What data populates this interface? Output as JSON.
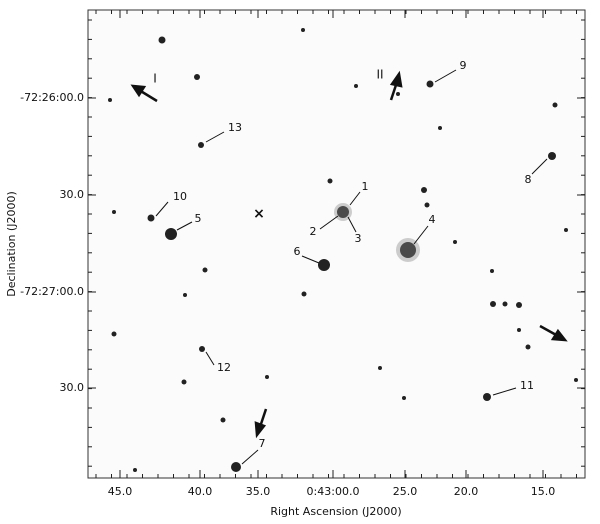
{
  "axes": {
    "x_title": "Right Ascension (J2000)",
    "y_title": "Declination (J2000)",
    "x_ticks": [
      "45.0",
      "40.0",
      "35.0",
      "0:43:00.0",
      "25.0",
      "20.0",
      "15.0"
    ],
    "y_ticks": [
      "-72:26:00.0",
      "30.0",
      "-72:27:00.0",
      "30.0"
    ]
  },
  "markers": {
    "arrow_1": "I",
    "arrow_2": "II",
    "cross": "×"
  },
  "stars": [
    "1",
    "2",
    "3",
    "4",
    "5",
    "6",
    "7",
    "8",
    "9",
    "10",
    "11",
    "12",
    "13"
  ]
}
